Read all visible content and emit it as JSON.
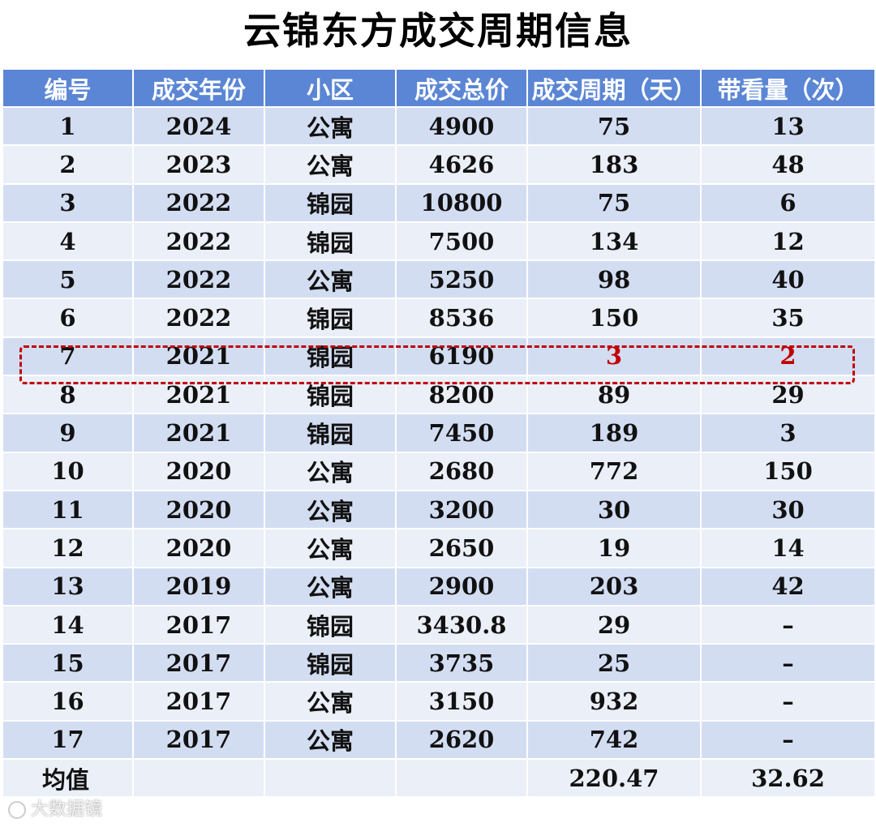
{
  "title": "云锦东方成交周期信息",
  "headers": [
    "编号",
    "成交年份",
    "小区",
    "成交总价",
    "成交周期（天）",
    "带看量（次）"
  ],
  "rows": [
    [
      "1",
      "2024",
      "公寓",
      "4900",
      "75",
      "13"
    ],
    [
      "2",
      "2023",
      "公寓",
      "4626",
      "183",
      "48"
    ],
    [
      "3",
      "2022",
      "锦园",
      "10800",
      "75",
      "6"
    ],
    [
      "4",
      "2022",
      "锦园",
      "7500",
      "134",
      "12"
    ],
    [
      "5",
      "2022",
      "公寓",
      "5250",
      "98",
      "40"
    ],
    [
      "6",
      "2022",
      "锦园",
      "8536",
      "150",
      "35"
    ],
    [
      "7",
      "2021",
      "锦园",
      "6190",
      "3",
      "2"
    ],
    [
      "8",
      "2021",
      "锦园",
      "8200",
      "89",
      "29"
    ],
    [
      "9",
      "2021",
      "锦园",
      "7450",
      "189",
      "3"
    ],
    [
      "10",
      "2020",
      "公寓",
      "2680",
      "772",
      "150"
    ],
    [
      "11",
      "2020",
      "公寓",
      "3200",
      "30",
      "30"
    ],
    [
      "12",
      "2020",
      "公寓",
      "2650",
      "19",
      "14"
    ],
    [
      "13",
      "2019",
      "公寓",
      "2900",
      "203",
      "42"
    ],
    [
      "14",
      "2017",
      "锦园",
      "3430.8",
      "29",
      "–"
    ],
    [
      "15",
      "2017",
      "锦园",
      "3735",
      "25",
      "–"
    ],
    [
      "16",
      "2017",
      "公寓",
      "3150",
      "932",
      "–"
    ],
    [
      "17",
      "2017",
      "公寓",
      "2620",
      "742",
      "–"
    ]
  ],
  "highlight_row_index": 6,
  "average": {
    "label": "均值",
    "cycle": "220.47",
    "views": "32.62"
  },
  "watermark": "大数据镜",
  "colors": {
    "header_bg": "#5b86d5",
    "row_odd": "#d3ddf2",
    "row_even": "#eaeff8",
    "highlight": "#c00000"
  }
}
